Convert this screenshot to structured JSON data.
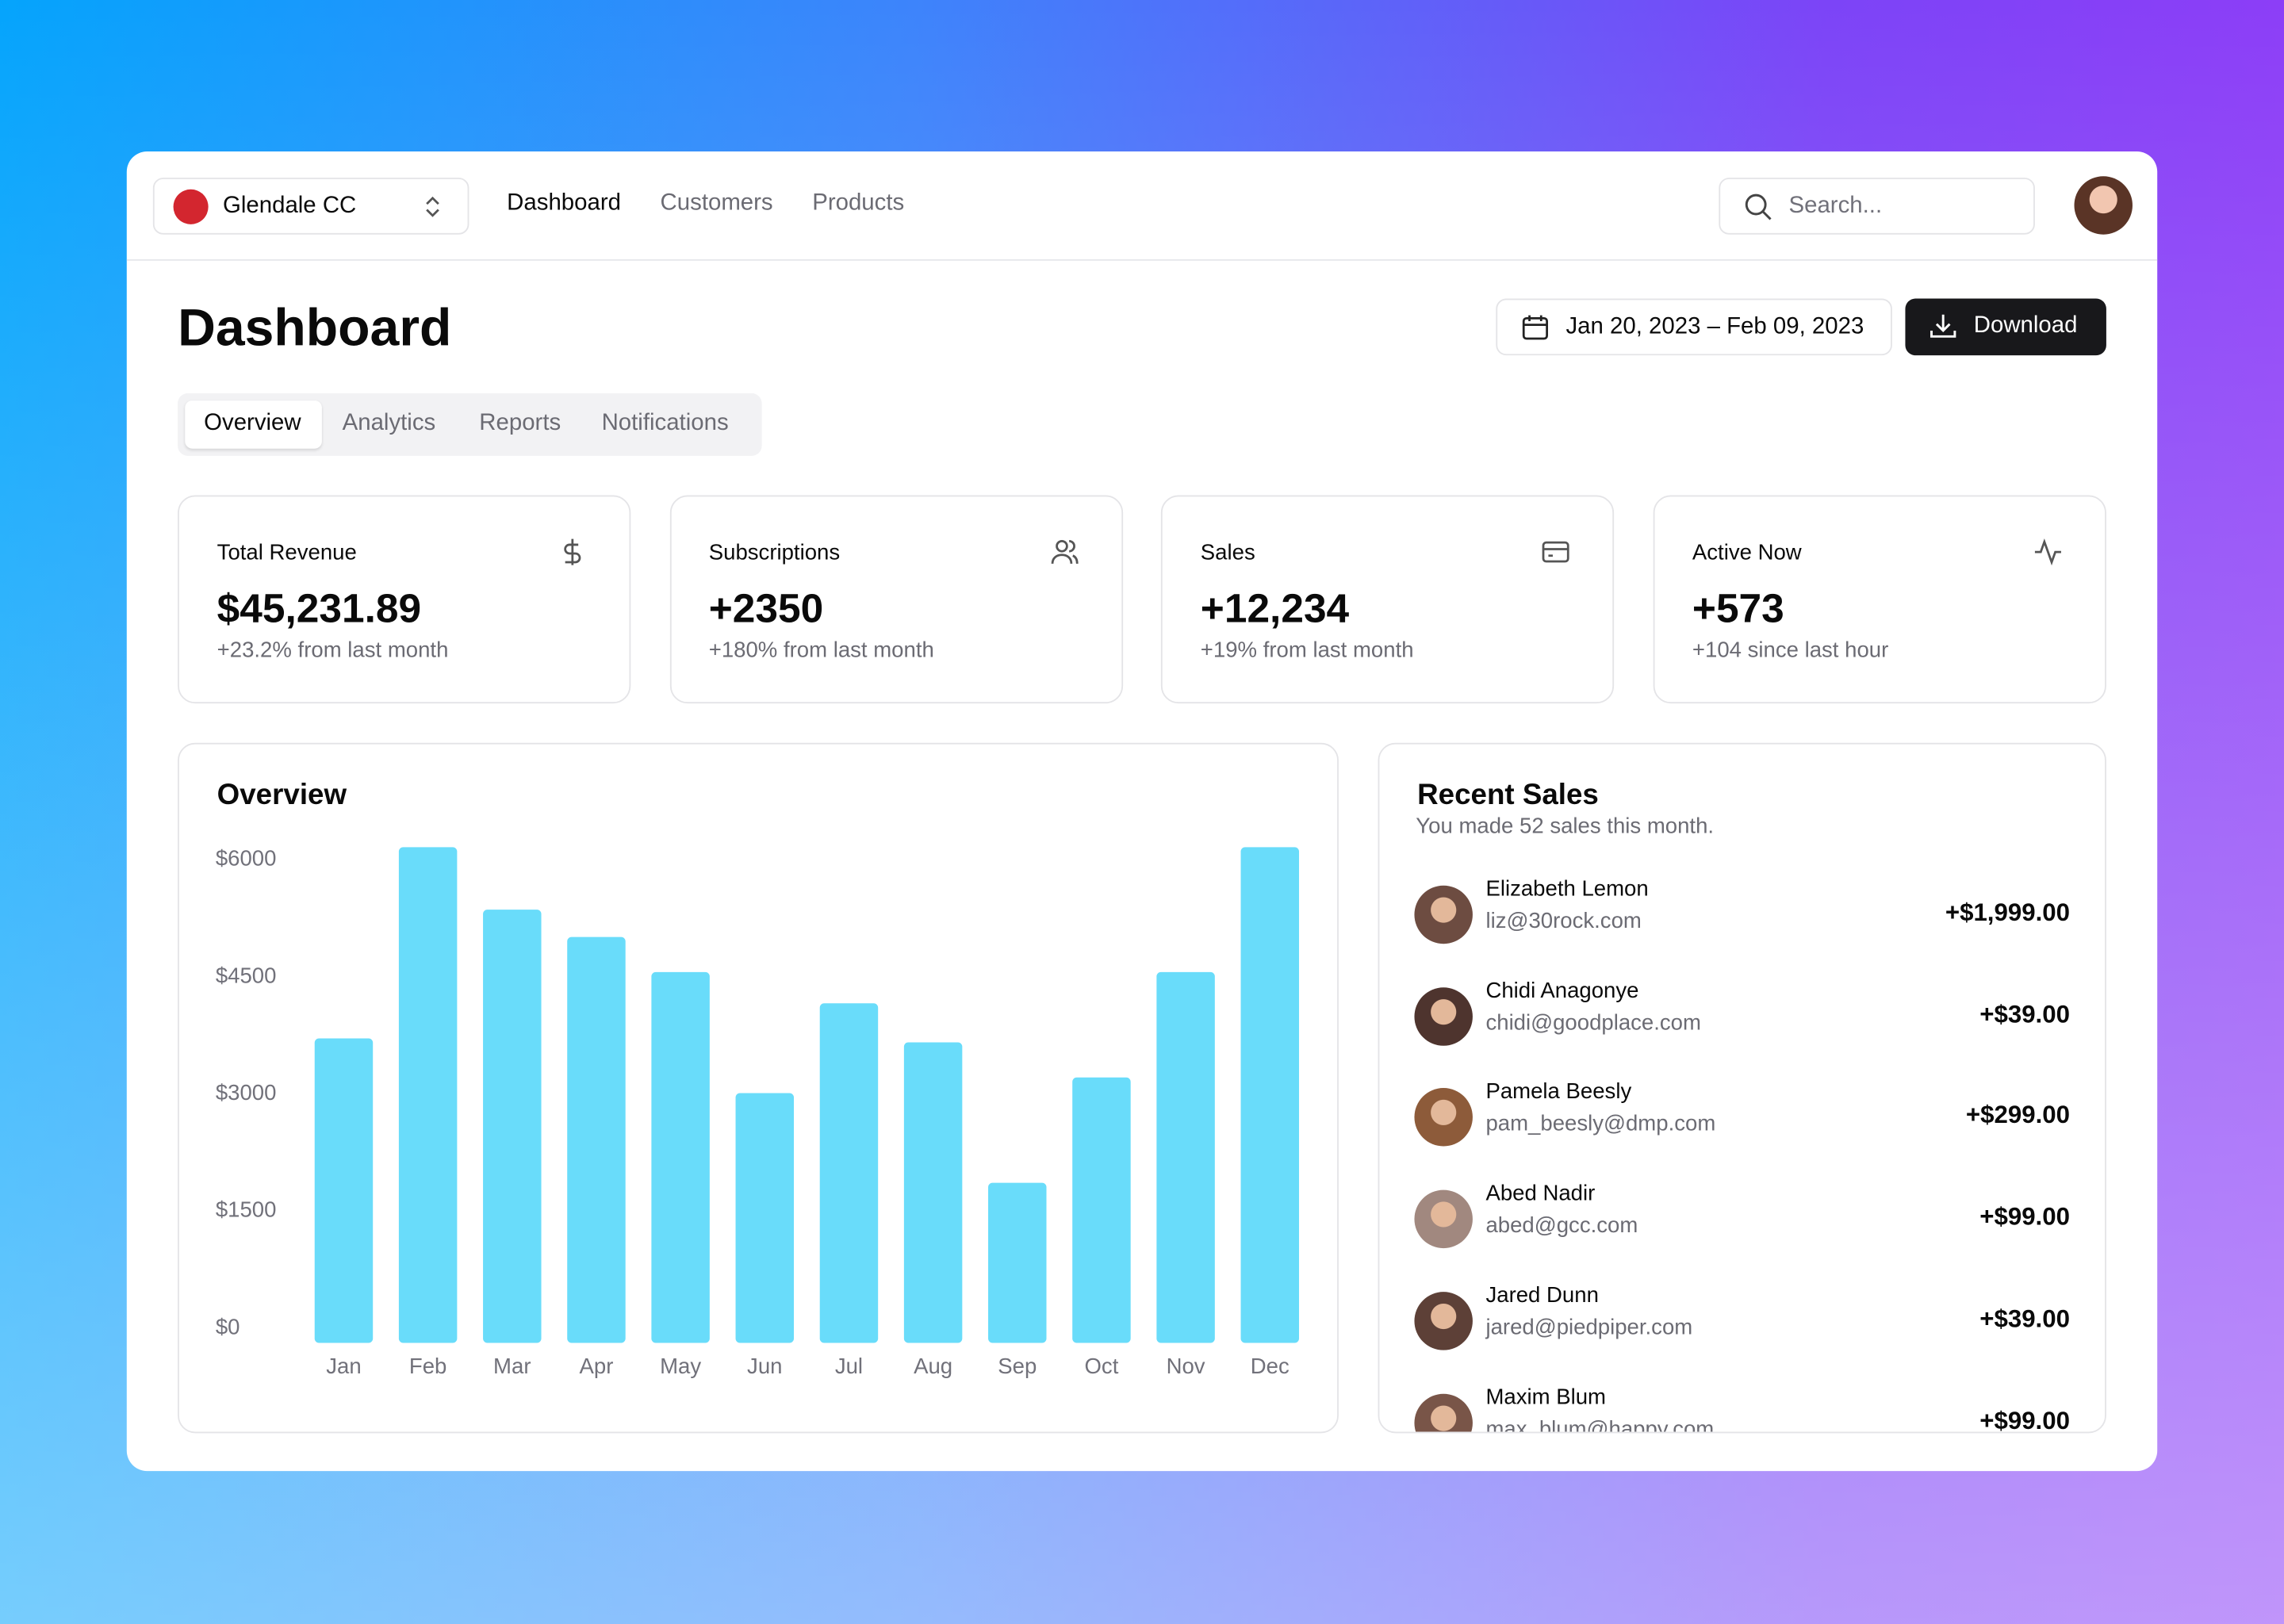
{
  "header": {
    "team": "Glendale CC",
    "nav": [
      "Dashboard",
      "Customers",
      "Products"
    ],
    "search_placeholder": "Search..."
  },
  "page": {
    "title": "Dashboard",
    "date_range": "Jan 20, 2023 – Feb 09, 2023",
    "download": "Download",
    "tabs": [
      "Overview",
      "Analytics",
      "Reports",
      "Notifications"
    ]
  },
  "stats": [
    {
      "label": "Total Revenue",
      "value": "$45,231.89",
      "change": "+23.2% from last month"
    },
    {
      "label": "Subscriptions",
      "value": "+2350",
      "change": "+180% from last month"
    },
    {
      "label": "Sales",
      "value": "+12,234",
      "change": "+19% from last month"
    },
    {
      "label": "Active Now",
      "value": "+573",
      "change": "+104 since last hour"
    }
  ],
  "chart_data": {
    "type": "bar",
    "title": "Overview",
    "categories": [
      "Jan",
      "Feb",
      "Mar",
      "Apr",
      "May",
      "Jun",
      "Jul",
      "Aug",
      "Sep",
      "Oct",
      "Nov",
      "Dec"
    ],
    "values": [
      3900,
      6350,
      5550,
      5200,
      4750,
      3200,
      4350,
      3850,
      2050,
      3400,
      4750,
      6350
    ],
    "color": "#69dcfa",
    "ylim": [
      0,
      6400
    ],
    "yticks": [
      {
        "value": 0,
        "label": "$0"
      },
      {
        "value": 1500,
        "label": "$1500"
      },
      {
        "value": 3000,
        "label": "$3000"
      },
      {
        "value": 4500,
        "label": "$4500"
      },
      {
        "value": 6000,
        "label": "$6000"
      }
    ],
    "grid": false
  },
  "recent_sales": {
    "title": "Recent Sales",
    "subtitle": "You made 52 sales this month.",
    "items": [
      {
        "name": "Elizabeth Lemon",
        "email": "liz@30rock.com",
        "amount": "+$1,999.00"
      },
      {
        "name": "Chidi Anagonye",
        "email": "chidi@goodplace.com",
        "amount": "+$39.00"
      },
      {
        "name": "Pamela Beesly",
        "email": "pam_beesly@dmp.com",
        "amount": "+$299.00"
      },
      {
        "name": "Abed Nadir",
        "email": "abed@gcc.com",
        "amount": "+$99.00"
      },
      {
        "name": "Jared Dunn",
        "email": "jared@piedpiper.com",
        "amount": "+$39.00"
      },
      {
        "name": "Maxim Blum",
        "email": "max_blum@happy.com",
        "amount": "+$99.00"
      }
    ]
  }
}
